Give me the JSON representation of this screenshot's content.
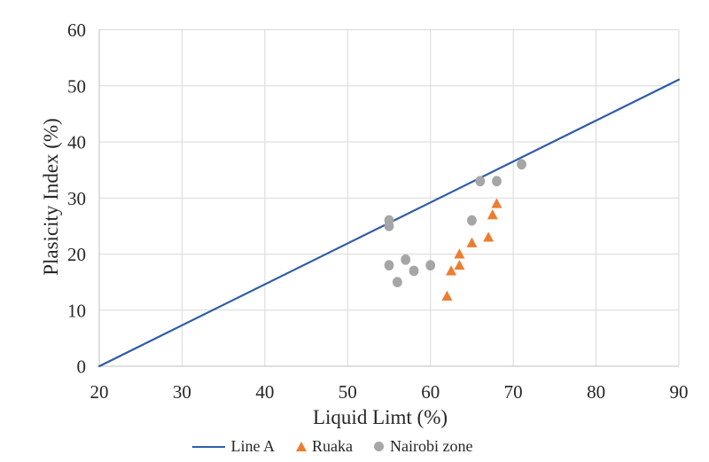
{
  "chart_data": {
    "type": "scatter",
    "title": "",
    "xlabel": "Liquid Limt (%)",
    "ylabel": "Plasicity Index (%)",
    "xlim": [
      20,
      90
    ],
    "ylim": [
      0,
      60
    ],
    "xticks": [
      20,
      30,
      40,
      50,
      60,
      70,
      80,
      90
    ],
    "yticks": [
      0,
      10,
      20,
      30,
      40,
      50,
      60
    ],
    "grid": true,
    "gridline_color": "#D9D9D9",
    "axis_line_color": "#BFBFBF",
    "text_color": "#262626",
    "legend_position": "bottom-center",
    "series": [
      {
        "name": "Line A",
        "type": "line",
        "color": "#2E5CA8",
        "points": [
          [
            20,
            0
          ],
          [
            90,
            51.1
          ]
        ]
      },
      {
        "name": "Ruaka",
        "type": "scatter",
        "marker": "triangle",
        "color": "#ED7D31",
        "points": [
          [
            62,
            12.5
          ],
          [
            62.5,
            17
          ],
          [
            63.5,
            18
          ],
          [
            63.5,
            20
          ],
          [
            65,
            22
          ],
          [
            67,
            23
          ],
          [
            67.5,
            27
          ],
          [
            68,
            29
          ]
        ]
      },
      {
        "name": "Nairobi zone",
        "type": "scatter",
        "marker": "circle",
        "color": "#A6A6A6",
        "points": [
          [
            55,
            25
          ],
          [
            55,
            26
          ],
          [
            55,
            18
          ],
          [
            56,
            15
          ],
          [
            57,
            19
          ],
          [
            58,
            17
          ],
          [
            60,
            18
          ],
          [
            65,
            26
          ],
          [
            66,
            33
          ],
          [
            68,
            33
          ],
          [
            71,
            36
          ]
        ]
      }
    ]
  }
}
